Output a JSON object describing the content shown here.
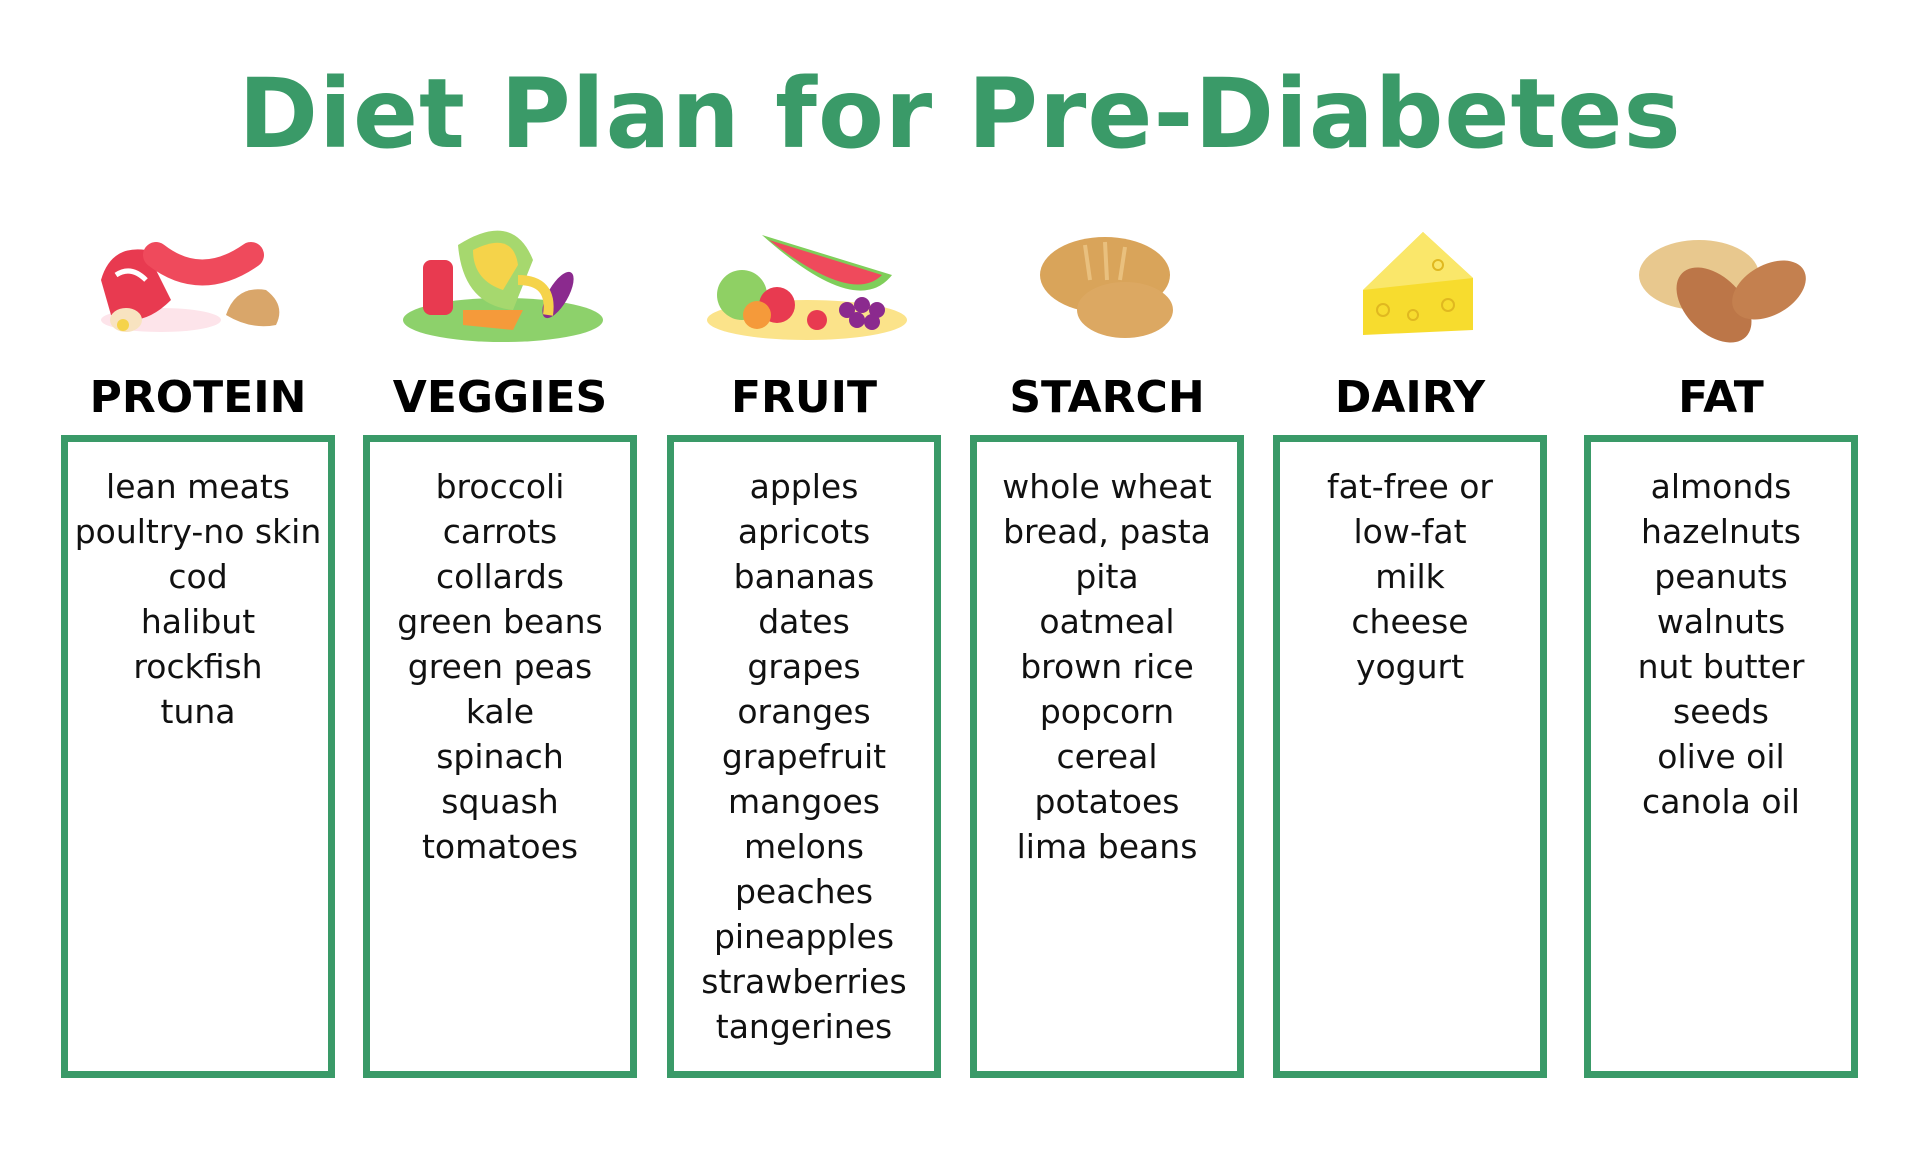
{
  "title": "Diet Plan for Pre-Diabetes",
  "accent_color": "#3a9a68",
  "categories": [
    {
      "name": "PROTEIN",
      "icon": "meat-icon",
      "items": [
        "lean meats",
        "poultry-no skin",
        "cod",
        "halibut",
        "rockfish",
        "tuna"
      ]
    },
    {
      "name": "VEGGIES",
      "icon": "vegetables-icon",
      "items": [
        "broccoli",
        "carrots",
        "collards",
        "green beans",
        "green peas",
        "kale",
        "spinach",
        "squash",
        "tomatoes"
      ]
    },
    {
      "name": "FRUIT",
      "icon": "fruit-icon",
      "items": [
        "apples",
        "apricots",
        "bananas",
        "dates",
        "grapes",
        "oranges",
        "grapefruit",
        "mangoes",
        "melons",
        "peaches",
        "pineapples",
        "strawberries",
        "tangerines"
      ]
    },
    {
      "name": "STARCH",
      "icon": "bread-icon",
      "items": [
        "whole wheat",
        "bread, pasta",
        "pita",
        "oatmeal",
        "brown rice",
        "popcorn",
        "cereal",
        "potatoes",
        "lima beans"
      ]
    },
    {
      "name": "DAIRY",
      "icon": "cheese-icon",
      "items": [
        "fat-free or",
        "low-fat",
        "milk",
        "cheese",
        "yogurt"
      ]
    },
    {
      "name": "FAT",
      "icon": "nuts-icon",
      "items": [
        "almonds",
        "hazelnuts",
        "peanuts",
        "walnuts",
        "nut butter",
        "seeds",
        "olive oil",
        "canola oil"
      ]
    }
  ]
}
